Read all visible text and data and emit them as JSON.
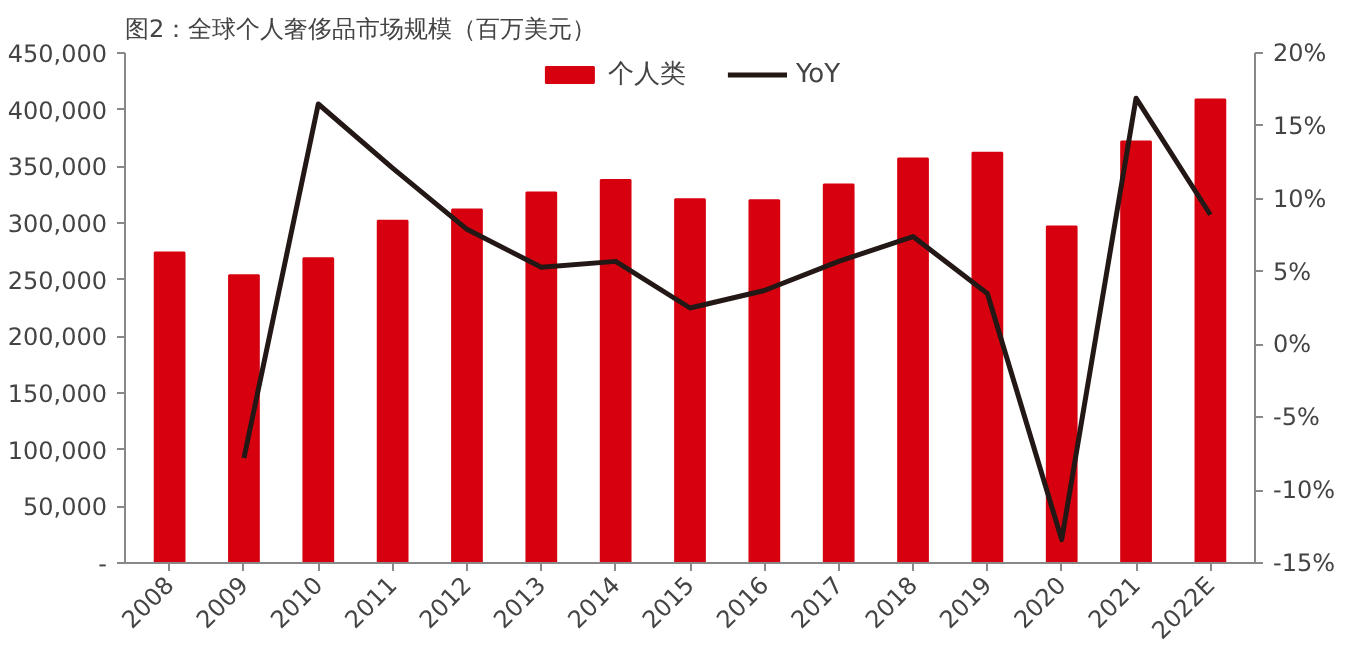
{
  "chart_data": {
    "type": "bar",
    "title": "图2：全球个人奢侈品市场规模（百万美元）",
    "categories": [
      "2008",
      "2009",
      "2010",
      "2011",
      "2012",
      "2013",
      "2014",
      "2015",
      "2016",
      "2017",
      "2018",
      "2019",
      "2020",
      "2021",
      "2022E"
    ],
    "series": [
      {
        "name": "个人类",
        "color": "#d7000f",
        "values": [
          274000,
          254000,
          269000,
          302000,
          312000,
          327000,
          338000,
          321000,
          320000,
          334000,
          357000,
          362000,
          297000,
          372000,
          409000
        ]
      },
      {
        "name": "YoY",
        "type": "line",
        "axis": "y2",
        "color": "#231815",
        "values": [
          null,
          -7.8,
          16.5,
          12.1,
          7.9,
          5.3,
          5.7,
          2.5,
          3.7,
          5.7,
          7.4,
          3.5,
          -13.4,
          16.9,
          8.9
        ]
      }
    ],
    "ylim": [
      0,
      450000
    ],
    "yticks": [
      {
        "value": 0,
        "label": "-"
      },
      {
        "value": 50000,
        "label": "50,000"
      },
      {
        "value": 100000,
        "label": "100,000"
      },
      {
        "value": 150000,
        "label": "150,000"
      },
      {
        "value": 200000,
        "label": "200,000"
      },
      {
        "value": 250000,
        "label": "250,000"
      },
      {
        "value": 300000,
        "label": "300,000"
      },
      {
        "value": 350000,
        "label": "350,000"
      },
      {
        "value": 400000,
        "label": "400,000"
      },
      {
        "value": 450000,
        "label": "450,000"
      }
    ],
    "y2lim": [
      -15,
      20
    ],
    "y2ticks": [
      {
        "value": -15,
        "label": "-15%"
      },
      {
        "value": -10,
        "label": "-10%"
      },
      {
        "value": -5,
        "label": "-5%"
      },
      {
        "value": 0,
        "label": "0%"
      },
      {
        "value": 5,
        "label": "5%"
      },
      {
        "value": 10,
        "label": "10%"
      },
      {
        "value": 15,
        "label": "15%"
      },
      {
        "value": 20,
        "label": "20%"
      }
    ],
    "legend": "top",
    "grid": false,
    "marker": "none",
    "line_style": "solid"
  }
}
